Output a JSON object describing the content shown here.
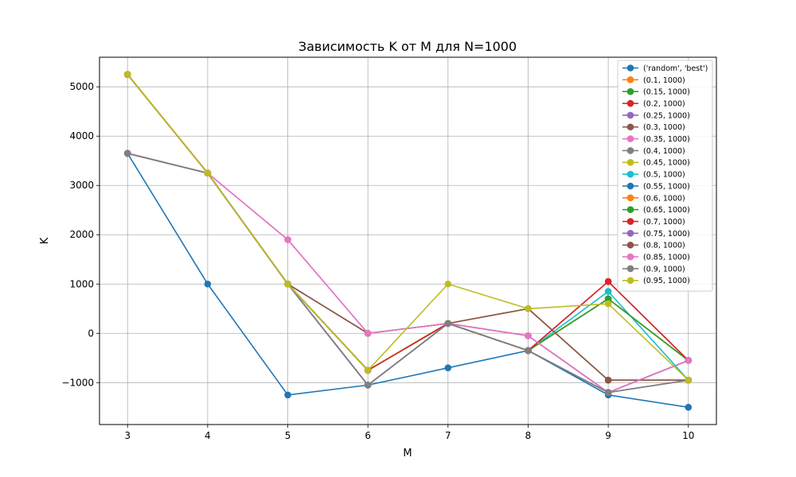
{
  "chart_data": {
    "type": "line",
    "title": "Зависимость K от M для N=1000",
    "xlabel": "M",
    "ylabel": "K",
    "x": [
      3,
      4,
      5,
      6,
      7,
      8,
      9,
      10
    ],
    "xlim": [
      2.65,
      10.35
    ],
    "ylim": [
      -1850,
      5600
    ],
    "xticks": [
      3,
      4,
      5,
      6,
      7,
      8,
      9,
      10
    ],
    "yticks": [
      -1000,
      0,
      1000,
      2000,
      3000,
      4000,
      5000
    ],
    "ytick_labels": [
      "−1000",
      "0",
      "1000",
      "2000",
      "3000",
      "4000",
      "5000"
    ],
    "grid": true,
    "legend_position": "upper right",
    "colors": [
      "#1f77b4",
      "#ff7f0e",
      "#2ca02c",
      "#d62728",
      "#9467bd",
      "#8c564b",
      "#e377c2",
      "#7f7f7f",
      "#bcbd22",
      "#17becf"
    ],
    "series": [
      {
        "name": "('random', 'best')",
        "values": [
          3650,
          1000,
          -1250,
          -1050,
          -700,
          -350,
          -1250,
          -1500
        ]
      },
      {
        "name": "(0.1, 1000)",
        "values": [
          5250,
          3250,
          1000,
          -750,
          200,
          -350,
          700,
          -550
        ]
      },
      {
        "name": "(0.15, 1000)",
        "values": [
          5250,
          3250,
          1000,
          -750,
          200,
          -350,
          700,
          -550
        ]
      },
      {
        "name": "(0.2, 1000)",
        "values": [
          5250,
          3250,
          1000,
          -750,
          200,
          -350,
          1050,
          -550
        ]
      },
      {
        "name": "(0.25, 1000)",
        "values": [
          3650,
          3250,
          1000,
          -1050,
          200,
          -50,
          -1200,
          -550
        ]
      },
      {
        "name": "(0.3, 1000)",
        "values": [
          5250,
          3250,
          1000,
          0,
          200,
          500,
          -950,
          -950
        ]
      },
      {
        "name": "(0.35, 1000)",
        "values": [
          3650,
          3250,
          1900,
          0,
          200,
          -50,
          -1200,
          -550
        ]
      },
      {
        "name": "(0.4, 1000)",
        "values": [
          3650,
          3250,
          1000,
          -1050,
          200,
          -350,
          -1200,
          -950
        ]
      },
      {
        "name": "(0.45, 1000)",
        "values": [
          5250,
          3250,
          1000,
          -750,
          200,
          500,
          -950,
          -950
        ]
      },
      {
        "name": "(0.5, 1000)",
        "values": [
          5250,
          3250,
          1000,
          -750,
          200,
          -350,
          850,
          -950
        ]
      },
      {
        "name": "(0.55, 1000)",
        "values": [
          3650,
          3250,
          1000,
          -1050,
          200,
          -350,
          -1200,
          -550
        ]
      },
      {
        "name": "(0.6, 1000)",
        "values": [
          5250,
          3250,
          1000,
          -750,
          200,
          -350,
          700,
          -550
        ]
      },
      {
        "name": "(0.65, 1000)",
        "values": [
          5250,
          3250,
          1000,
          -750,
          200,
          -350,
          700,
          -550
        ]
      },
      {
        "name": "(0.7, 1000)",
        "values": [
          5250,
          3250,
          1000,
          -750,
          200,
          -350,
          1050,
          -550
        ]
      },
      {
        "name": "(0.75, 1000)",
        "values": [
          3650,
          3250,
          1000,
          -1050,
          200,
          -50,
          -1200,
          -550
        ]
      },
      {
        "name": "(0.8, 1000)",
        "values": [
          3650,
          3250,
          1000,
          0,
          200,
          500,
          -950,
          -950
        ]
      },
      {
        "name": "(0.85, 1000)",
        "values": [
          3650,
          3250,
          1900,
          0,
          200,
          -50,
          -1200,
          -550
        ]
      },
      {
        "name": "(0.9, 1000)",
        "values": [
          3650,
          3250,
          1000,
          -1050,
          200,
          -350,
          -1200,
          -950
        ]
      },
      {
        "name": "(0.95, 1000)",
        "values": [
          5250,
          3250,
          1000,
          -750,
          1000,
          500,
          600,
          -950
        ]
      }
    ]
  }
}
